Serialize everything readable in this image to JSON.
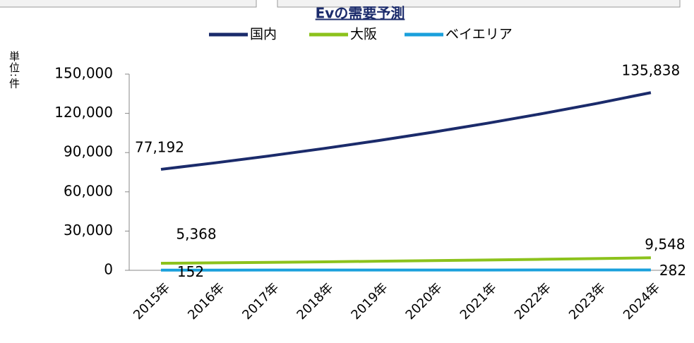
{
  "chart_data": {
    "type": "line",
    "title": "Evの需要予測",
    "y_label": "単位:件",
    "categories": [
      "2015年",
      "2016年",
      "2017年",
      "2018年",
      "2019年",
      "2020年",
      "2021年",
      "2022年",
      "2023年",
      "2024年"
    ],
    "series": [
      {
        "name": "国内",
        "color": "#1b2b6b",
        "values": [
          77192,
          82190,
          87513,
          93180,
          99214,
          105638,
          112479,
          119762,
          127517,
          135838
        ],
        "value_labels": [
          "77,192",
          null,
          null,
          null,
          null,
          null,
          null,
          null,
          null,
          "135,838"
        ]
      },
      {
        "name": "大阪",
        "color": "#8cc21c",
        "values": [
          5368,
          5723,
          6101,
          6504,
          6934,
          7392,
          7881,
          8402,
          8957,
          9548
        ],
        "value_labels": [
          "5,368",
          null,
          null,
          null,
          null,
          null,
          null,
          null,
          null,
          "9,548"
        ]
      },
      {
        "name": "ベイエリア",
        "color": "#1aa0dc",
        "values": [
          152,
          162,
          173,
          185,
          198,
          211,
          225,
          240,
          261,
          282
        ]
      }
    ],
    "ylim": [
      0,
      150000
    ],
    "yticks": [
      0,
      {
        "value": 30000,
        "label": "30,000"
      },
      {
        "value": 60000,
        "label": "60,000"
      },
      {
        "value": 90000,
        "label": "90,000"
      },
      {
        "value": 120000,
        "label": "120,000"
      },
      {
        "value": 150000,
        "label": "150,000"
      }
    ]
  }
}
